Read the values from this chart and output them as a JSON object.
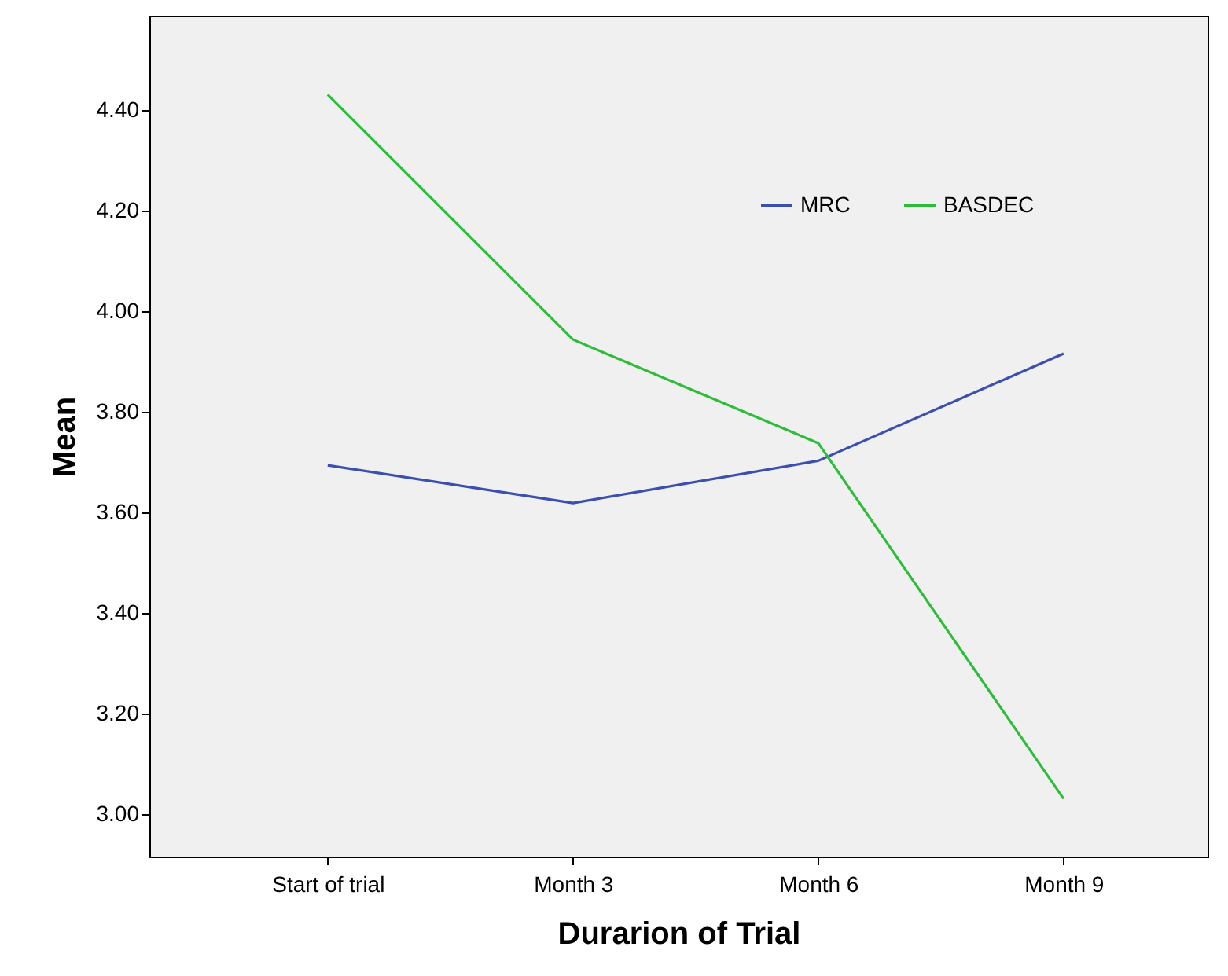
{
  "chart_data": {
    "type": "line",
    "xlabel": "Durarion of Trial",
    "ylabel": "Mean",
    "categories": [
      "Start of trial",
      "Month 3",
      "Month 6",
      "Month 9"
    ],
    "series": [
      {
        "name": "MRC",
        "color": "#3b4fb0",
        "values": [
          3.694,
          3.619,
          3.703,
          3.916
        ]
      },
      {
        "name": "BASDEC",
        "color": "#2ebd3a",
        "values": [
          4.431,
          3.944,
          3.738,
          3.031
        ]
      }
    ],
    "ylim": [
      2.916,
      4.588
    ],
    "yticks": [
      {
        "value": 3.0,
        "label": "3.00"
      },
      {
        "value": 3.2,
        "label": "3.20"
      },
      {
        "value": 3.4,
        "label": "3.40"
      },
      {
        "value": 3.6,
        "label": "3.60"
      },
      {
        "value": 3.8,
        "label": "3.80"
      },
      {
        "value": 4.0,
        "label": "4.00"
      },
      {
        "value": 4.2,
        "label": "4.20"
      },
      {
        "value": 4.4,
        "label": "4.40"
      }
    ],
    "grid": false,
    "legend": "top right",
    "marker": "none",
    "line_style": "solid"
  }
}
